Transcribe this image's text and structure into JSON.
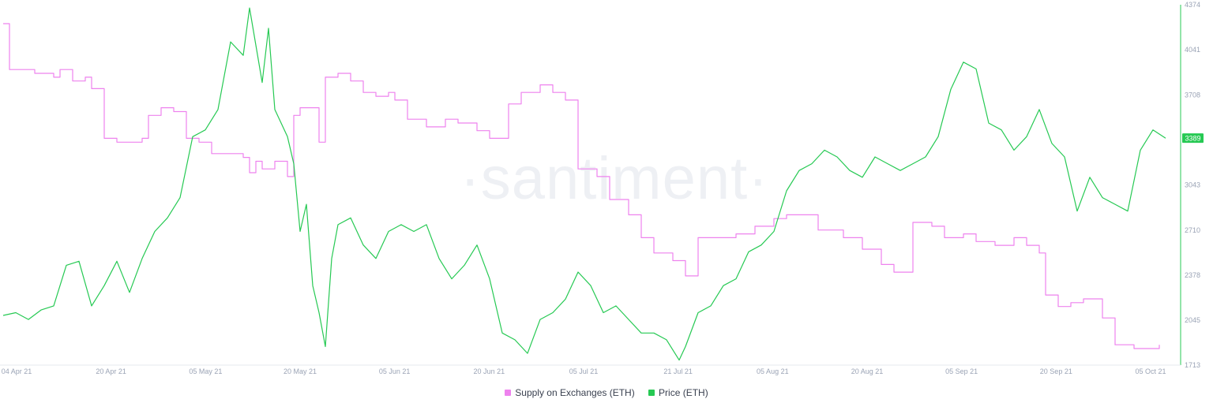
{
  "chart_data": {
    "type": "line",
    "watermark": "·santiment·",
    "x_ticks": [
      "04 Apr 21",
      "20 Apr 21",
      "05 May 21",
      "20 May 21",
      "05 Jun 21",
      "20 Jun 21",
      "05 Jul 21",
      "21 Jul 21",
      "05 Aug 21",
      "20 Aug 21",
      "05 Sep 21",
      "20 Sep 21",
      "05 Oct 21"
    ],
    "x_range": [
      "2021-04-04",
      "2021-10-05"
    ],
    "right_axis": {
      "ticks": [
        "1713",
        "2045",
        "2378",
        "2710",
        "3043",
        "3376",
        "3708",
        "4041",
        "4374"
      ],
      "range": [
        1713,
        4374
      ],
      "last_value_badge": "3389",
      "color": "#26c953"
    },
    "grid": false,
    "legend_position": "bottom-center",
    "series": [
      {
        "name": "Supply on Exchanges (ETH)",
        "color": "#ee82ee",
        "axis": "hidden",
        "points": [
          [
            "2021-04-04",
            96
          ],
          [
            "2021-04-05",
            84
          ],
          [
            "2021-04-09",
            83
          ],
          [
            "2021-04-12",
            82
          ],
          [
            "2021-04-13",
            84
          ],
          [
            "2021-04-15",
            81
          ],
          [
            "2021-04-17",
            82
          ],
          [
            "2021-04-18",
            79
          ],
          [
            "2021-04-20",
            66
          ],
          [
            "2021-04-22",
            65
          ],
          [
            "2021-04-24",
            65
          ],
          [
            "2021-04-26",
            66
          ],
          [
            "2021-04-27",
            72
          ],
          [
            "2021-04-29",
            74
          ],
          [
            "2021-05-01",
            73
          ],
          [
            "2021-05-03",
            66
          ],
          [
            "2021-05-05",
            65
          ],
          [
            "2021-05-07",
            62
          ],
          [
            "2021-05-10",
            62
          ],
          [
            "2021-05-12",
            61
          ],
          [
            "2021-05-13",
            57
          ],
          [
            "2021-05-14",
            60
          ],
          [
            "2021-05-15",
            58
          ],
          [
            "2021-05-17",
            60
          ],
          [
            "2021-05-18",
            60
          ],
          [
            "2021-05-19",
            56
          ],
          [
            "2021-05-20",
            72
          ],
          [
            "2021-05-21",
            74
          ],
          [
            "2021-05-23",
            74
          ],
          [
            "2021-05-24",
            65
          ],
          [
            "2021-05-25",
            82
          ],
          [
            "2021-05-27",
            83
          ],
          [
            "2021-05-29",
            81
          ],
          [
            "2021-05-31",
            78
          ],
          [
            "2021-06-02",
            77
          ],
          [
            "2021-06-04",
            78
          ],
          [
            "2021-06-05",
            76
          ],
          [
            "2021-06-07",
            71
          ],
          [
            "2021-06-10",
            69
          ],
          [
            "2021-06-13",
            71
          ],
          [
            "2021-06-15",
            70
          ],
          [
            "2021-06-18",
            68
          ],
          [
            "2021-06-20",
            66
          ],
          [
            "2021-06-22",
            66
          ],
          [
            "2021-06-23",
            75
          ],
          [
            "2021-06-25",
            78
          ],
          [
            "2021-06-28",
            80
          ],
          [
            "2021-06-30",
            78
          ],
          [
            "2021-07-02",
            76
          ],
          [
            "2021-07-04",
            58
          ],
          [
            "2021-07-07",
            56
          ],
          [
            "2021-07-09",
            50
          ],
          [
            "2021-07-12",
            46
          ],
          [
            "2021-07-14",
            40
          ],
          [
            "2021-07-16",
            36
          ],
          [
            "2021-07-19",
            34
          ],
          [
            "2021-07-21",
            30
          ],
          [
            "2021-07-23",
            40
          ],
          [
            "2021-07-26",
            40
          ],
          [
            "2021-07-29",
            41
          ],
          [
            "2021-08-01",
            43
          ],
          [
            "2021-08-04",
            45
          ],
          [
            "2021-08-06",
            46
          ],
          [
            "2021-08-08",
            46
          ],
          [
            "2021-08-11",
            42
          ],
          [
            "2021-08-15",
            40
          ],
          [
            "2021-08-18",
            37
          ],
          [
            "2021-08-21",
            33
          ],
          [
            "2021-08-23",
            31
          ],
          [
            "2021-08-25",
            31
          ],
          [
            "2021-08-26",
            44
          ],
          [
            "2021-08-29",
            43
          ],
          [
            "2021-08-31",
            40
          ],
          [
            "2021-09-03",
            41
          ],
          [
            "2021-09-05",
            39
          ],
          [
            "2021-09-08",
            38
          ],
          [
            "2021-09-11",
            40
          ],
          [
            "2021-09-13",
            38
          ],
          [
            "2021-09-15",
            36
          ],
          [
            "2021-09-16",
            25
          ],
          [
            "2021-09-18",
            22
          ],
          [
            "2021-09-20",
            23
          ],
          [
            "2021-09-22",
            24
          ],
          [
            "2021-09-25",
            19
          ],
          [
            "2021-09-27",
            12
          ],
          [
            "2021-09-30",
            11
          ],
          [
            "2021-10-02",
            11
          ],
          [
            "2021-10-04",
            12
          ]
        ]
      },
      {
        "name": "Price (ETH)",
        "color": "#26c953",
        "axis": "right",
        "points": [
          [
            "2021-04-04",
            2080
          ],
          [
            "2021-04-06",
            2100
          ],
          [
            "2021-04-08",
            2050
          ],
          [
            "2021-04-10",
            2120
          ],
          [
            "2021-04-12",
            2150
          ],
          [
            "2021-04-14",
            2450
          ],
          [
            "2021-04-16",
            2480
          ],
          [
            "2021-04-18",
            2150
          ],
          [
            "2021-04-20",
            2300
          ],
          [
            "2021-04-22",
            2480
          ],
          [
            "2021-04-24",
            2250
          ],
          [
            "2021-04-26",
            2500
          ],
          [
            "2021-04-28",
            2700
          ],
          [
            "2021-04-30",
            2800
          ],
          [
            "2021-05-02",
            2950
          ],
          [
            "2021-05-04",
            3400
          ],
          [
            "2021-05-06",
            3450
          ],
          [
            "2021-05-08",
            3600
          ],
          [
            "2021-05-10",
            4100
          ],
          [
            "2021-05-12",
            4000
          ],
          [
            "2021-05-13",
            4350
          ],
          [
            "2021-05-15",
            3800
          ],
          [
            "2021-05-16",
            4200
          ],
          [
            "2021-05-17",
            3600
          ],
          [
            "2021-05-19",
            3400
          ],
          [
            "2021-05-20",
            3200
          ],
          [
            "2021-05-21",
            2700
          ],
          [
            "2021-05-22",
            2900
          ],
          [
            "2021-05-23",
            2300
          ],
          [
            "2021-05-24",
            2100
          ],
          [
            "2021-05-25",
            1850
          ],
          [
            "2021-05-26",
            2500
          ],
          [
            "2021-05-27",
            2750
          ],
          [
            "2021-05-29",
            2800
          ],
          [
            "2021-05-31",
            2600
          ],
          [
            "2021-06-02",
            2500
          ],
          [
            "2021-06-04",
            2700
          ],
          [
            "2021-06-06",
            2750
          ],
          [
            "2021-06-08",
            2700
          ],
          [
            "2021-06-10",
            2750
          ],
          [
            "2021-06-12",
            2500
          ],
          [
            "2021-06-14",
            2350
          ],
          [
            "2021-06-16",
            2450
          ],
          [
            "2021-06-18",
            2600
          ],
          [
            "2021-06-20",
            2350
          ],
          [
            "2021-06-22",
            1950
          ],
          [
            "2021-06-24",
            1900
          ],
          [
            "2021-06-26",
            1800
          ],
          [
            "2021-06-28",
            2050
          ],
          [
            "2021-06-30",
            2100
          ],
          [
            "2021-07-02",
            2200
          ],
          [
            "2021-07-04",
            2400
          ],
          [
            "2021-07-06",
            2300
          ],
          [
            "2021-07-08",
            2100
          ],
          [
            "2021-07-10",
            2150
          ],
          [
            "2021-07-12",
            2050
          ],
          [
            "2021-07-14",
            1950
          ],
          [
            "2021-07-16",
            1950
          ],
          [
            "2021-07-18",
            1900
          ],
          [
            "2021-07-20",
            1750
          ],
          [
            "2021-07-21",
            1850
          ],
          [
            "2021-07-23",
            2100
          ],
          [
            "2021-07-25",
            2150
          ],
          [
            "2021-07-27",
            2300
          ],
          [
            "2021-07-29",
            2350
          ],
          [
            "2021-07-31",
            2550
          ],
          [
            "2021-08-02",
            2600
          ],
          [
            "2021-08-04",
            2700
          ],
          [
            "2021-08-06",
            3000
          ],
          [
            "2021-08-08",
            3150
          ],
          [
            "2021-08-10",
            3200
          ],
          [
            "2021-08-12",
            3300
          ],
          [
            "2021-08-14",
            3250
          ],
          [
            "2021-08-16",
            3150
          ],
          [
            "2021-08-18",
            3100
          ],
          [
            "2021-08-20",
            3250
          ],
          [
            "2021-08-22",
            3200
          ],
          [
            "2021-08-24",
            3150
          ],
          [
            "2021-08-26",
            3200
          ],
          [
            "2021-08-28",
            3250
          ],
          [
            "2021-08-30",
            3400
          ],
          [
            "2021-09-01",
            3750
          ],
          [
            "2021-09-03",
            3950
          ],
          [
            "2021-09-05",
            3900
          ],
          [
            "2021-09-07",
            3500
          ],
          [
            "2021-09-09",
            3450
          ],
          [
            "2021-09-11",
            3300
          ],
          [
            "2021-09-13",
            3400
          ],
          [
            "2021-09-15",
            3600
          ],
          [
            "2021-09-17",
            3350
          ],
          [
            "2021-09-19",
            3250
          ],
          [
            "2021-09-21",
            2850
          ],
          [
            "2021-09-23",
            3100
          ],
          [
            "2021-09-25",
            2950
          ],
          [
            "2021-09-27",
            2900
          ],
          [
            "2021-09-29",
            2850
          ],
          [
            "2021-10-01",
            3300
          ],
          [
            "2021-10-03",
            3450
          ],
          [
            "2021-10-05",
            3389
          ]
        ]
      }
    ]
  }
}
